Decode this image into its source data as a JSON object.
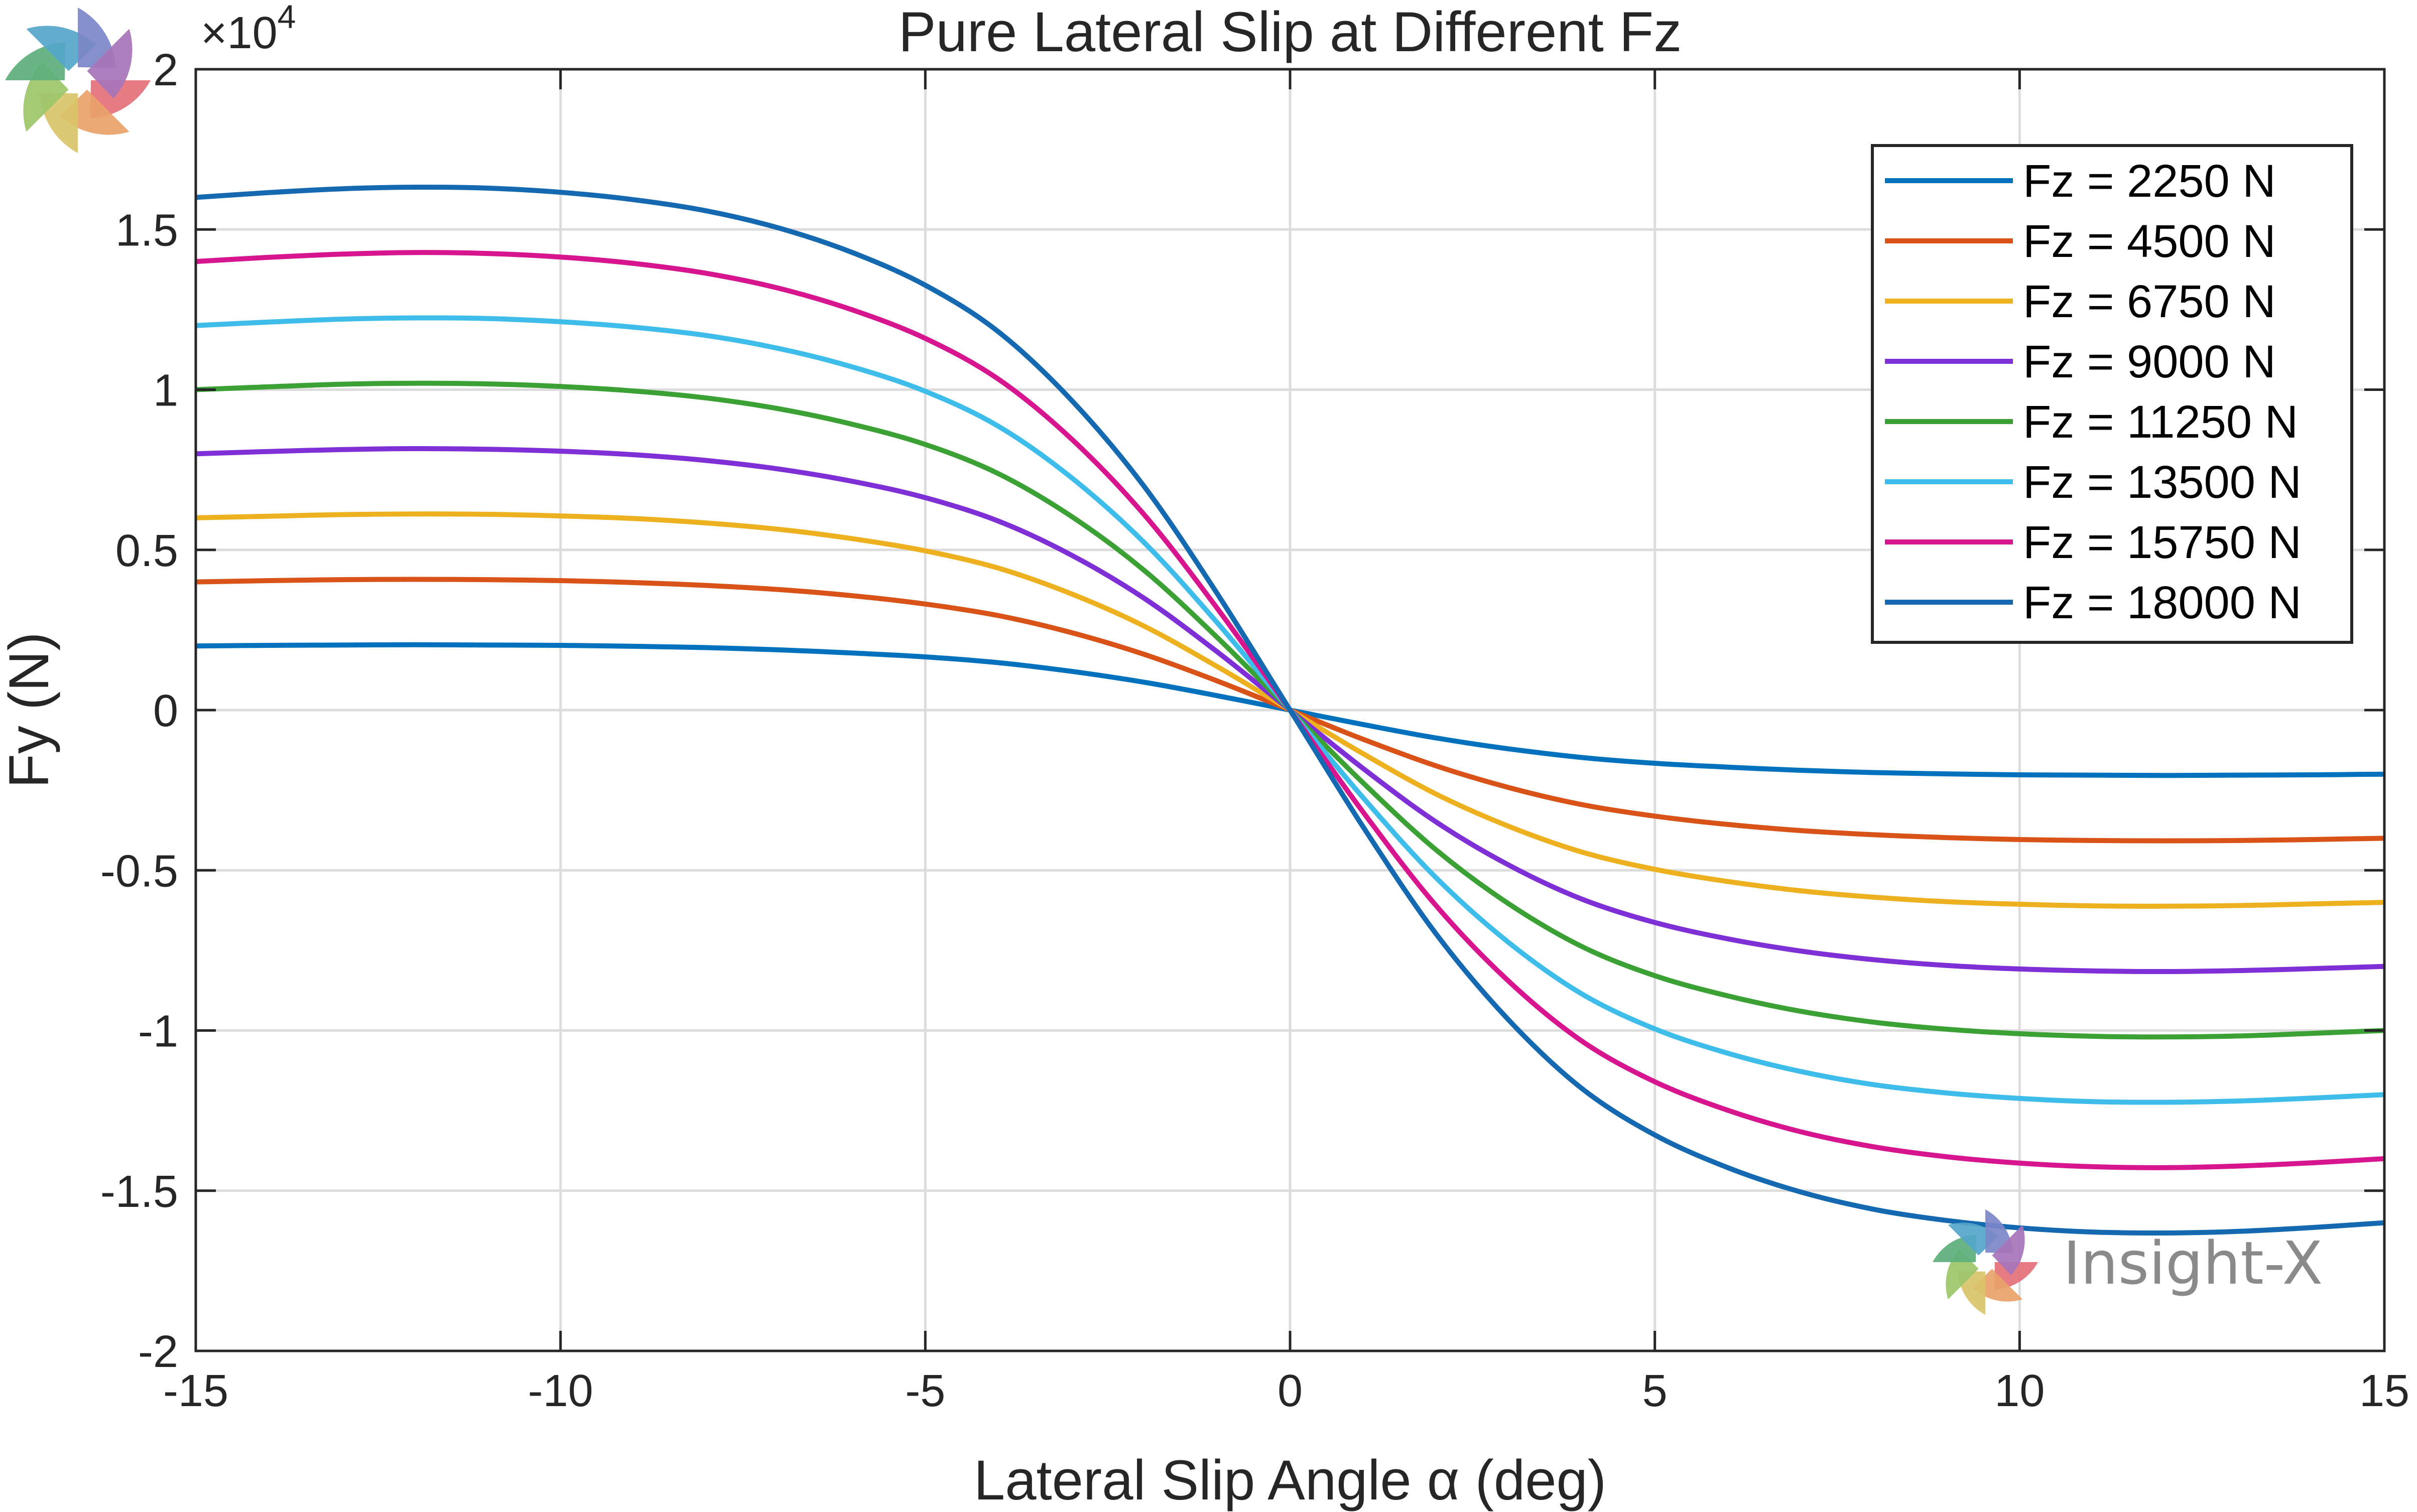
{
  "chart_data": {
    "type": "line",
    "title": "Pure Lateral Slip at Different Fz",
    "xlabel": "Lateral  Slip  Angle  α  (deg)",
    "ylabel": "Fy (N)",
    "y_multiplier": "×10",
    "y_multiplier_exponent": "4",
    "xlim": [
      -15,
      15
    ],
    "ylim": [
      -2,
      2
    ],
    "xticks": [
      -15,
      -10,
      -5,
      0,
      5,
      10,
      15
    ],
    "xtick_labels": [
      "-15",
      "-10",
      "-5",
      "0",
      "5",
      "10",
      "15"
    ],
    "yticks": [
      -2,
      -1.5,
      -1,
      -0.5,
      0,
      0.5,
      1,
      1.5,
      2
    ],
    "ytick_labels": [
      "-2",
      "-1.5",
      "-1",
      "-0.5",
      "0",
      "0.5",
      "1",
      "1.5",
      "2"
    ],
    "grid": true,
    "legend_position": "top-right",
    "x": [
      -15,
      -14,
      -13,
      -12,
      -11,
      -10,
      -9,
      -8,
      -7,
      -6,
      -5,
      -4,
      -3,
      -2,
      -1,
      0,
      1,
      2,
      3,
      4,
      5,
      6,
      7,
      8,
      9,
      10,
      11,
      12,
      13,
      14,
      15
    ],
    "series": [
      {
        "name": "Fz = 2250 N",
        "color": "#0072BD",
        "values": [
          0.2,
          0.202,
          0.203,
          0.204,
          0.203,
          0.202,
          0.199,
          0.195,
          0.188,
          0.178,
          0.166,
          0.148,
          0.121,
          0.087,
          0.045,
          0,
          -0.045,
          -0.087,
          -0.121,
          -0.148,
          -0.166,
          -0.178,
          -0.188,
          -0.195,
          -0.199,
          -0.202,
          -0.203,
          -0.204,
          -0.203,
          -0.202,
          -0.2
        ]
      },
      {
        "name": "Fz = 4500 N",
        "color": "#D95319",
        "values": [
          0.4,
          0.404,
          0.407,
          0.408,
          0.407,
          0.404,
          0.398,
          0.389,
          0.376,
          0.357,
          0.331,
          0.295,
          0.242,
          0.174,
          0.091,
          0,
          -0.091,
          -0.174,
          -0.242,
          -0.295,
          -0.331,
          -0.357,
          -0.376,
          -0.389,
          -0.398,
          -0.404,
          -0.407,
          -0.408,
          -0.407,
          -0.404,
          -0.4
        ]
      },
      {
        "name": "Fz = 6750 N",
        "color": "#EDB120",
        "values": [
          0.6,
          0.605,
          0.61,
          0.612,
          0.611,
          0.606,
          0.598,
          0.584,
          0.564,
          0.535,
          0.497,
          0.443,
          0.363,
          0.262,
          0.136,
          0,
          -0.136,
          -0.262,
          -0.363,
          -0.443,
          -0.497,
          -0.535,
          -0.564,
          -0.584,
          -0.598,
          -0.606,
          -0.611,
          -0.612,
          -0.61,
          -0.605,
          -0.6
        ]
      },
      {
        "name": "Fz = 9000 N",
        "color": "#7E2FD6",
        "values": [
          0.8,
          0.807,
          0.813,
          0.816,
          0.814,
          0.808,
          0.797,
          0.779,
          0.752,
          0.714,
          0.663,
          0.59,
          0.484,
          0.349,
          0.182,
          0,
          -0.182,
          -0.349,
          -0.484,
          -0.59,
          -0.663,
          -0.714,
          -0.752,
          -0.779,
          -0.797,
          -0.808,
          -0.814,
          -0.816,
          -0.813,
          -0.807,
          -0.8
        ]
      },
      {
        "name": "Fz = 11250 N",
        "color": "#3BA135",
        "values": [
          1.0,
          1.009,
          1.017,
          1.02,
          1.018,
          1.01,
          0.996,
          0.974,
          0.94,
          0.892,
          0.829,
          0.738,
          0.605,
          0.436,
          0.227,
          0,
          -0.227,
          -0.436,
          -0.605,
          -0.738,
          -0.829,
          -0.892,
          -0.94,
          -0.974,
          -0.996,
          -1.01,
          -1.018,
          -1.02,
          -1.017,
          -1.009,
          -1.0
        ]
      },
      {
        "name": "Fz = 13500 N",
        "color": "#3EBCEA",
        "values": [
          1.2,
          1.211,
          1.22,
          1.224,
          1.222,
          1.212,
          1.195,
          1.169,
          1.128,
          1.071,
          0.995,
          0.886,
          0.726,
          0.523,
          0.273,
          0,
          -0.273,
          -0.523,
          -0.726,
          -0.886,
          -0.995,
          -1.071,
          -1.128,
          -1.169,
          -1.195,
          -1.212,
          -1.222,
          -1.224,
          -1.22,
          -1.211,
          -1.2
        ]
      },
      {
        "name": "Fz = 15750 N",
        "color": "#D6158E",
        "values": [
          1.4,
          1.413,
          1.423,
          1.428,
          1.425,
          1.414,
          1.394,
          1.363,
          1.316,
          1.249,
          1.16,
          1.033,
          0.847,
          0.61,
          0.318,
          0,
          -0.318,
          -0.61,
          -0.847,
          -1.033,
          -1.16,
          -1.249,
          -1.316,
          -1.363,
          -1.394,
          -1.414,
          -1.425,
          -1.428,
          -1.423,
          -1.413,
          -1.4
        ]
      },
      {
        "name": "Fz = 18000 N",
        "color": "#1469B0",
        "values": [
          1.6,
          1.615,
          1.627,
          1.632,
          1.629,
          1.616,
          1.593,
          1.558,
          1.504,
          1.428,
          1.326,
          1.181,
          0.968,
          0.698,
          0.364,
          0,
          -0.364,
          -0.698,
          -0.968,
          -1.181,
          -1.326,
          -1.428,
          -1.504,
          -1.558,
          -1.593,
          -1.616,
          -1.629,
          -1.632,
          -1.627,
          -1.615,
          -1.6
        ]
      }
    ]
  },
  "watermark": {
    "text": "Insight-X"
  },
  "logo_colors": [
    "#E4707A",
    "#E9A26A",
    "#D9C46A",
    "#9CC56A",
    "#5DAF7B",
    "#55A6C9",
    "#7B87C9",
    "#A774B8"
  ]
}
